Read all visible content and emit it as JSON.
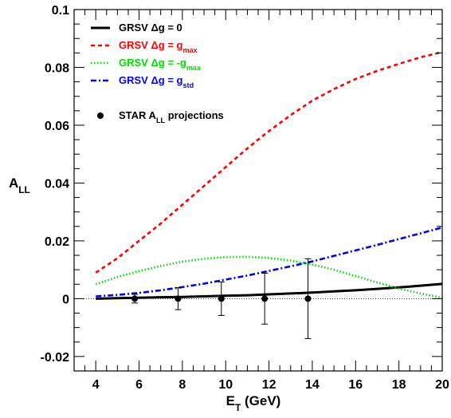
{
  "chart_data": {
    "type": "line",
    "xlabel": {
      "main": "E",
      "sub": "T",
      "rest": " (GeV)"
    },
    "ylabel": {
      "main": "A",
      "sub": "LL"
    },
    "xlim": [
      3,
      20
    ],
    "ylim": [
      -0.025,
      0.1
    ],
    "x_ticks": [
      4,
      6,
      8,
      10,
      12,
      14,
      16,
      18,
      20
    ],
    "x_tick_labels": [
      "4",
      "6",
      "8",
      "10",
      "12",
      "14",
      "16",
      "18",
      "20"
    ],
    "y_ticks": [
      -0.02,
      0,
      0.02,
      0.04,
      0.06,
      0.08,
      0.1
    ],
    "y_tick_labels": [
      "-0.02",
      "0",
      "0.02",
      "0.04",
      "0.06",
      "0.08",
      "0.1"
    ],
    "zero_line": true,
    "legend_position": "top-left",
    "series": [
      {
        "name_main": "GRSV Δg = 0",
        "name_sub": "",
        "color": "#000000",
        "style": "solid",
        "x": [
          4,
          5,
          6,
          7,
          8,
          9,
          10,
          11,
          12,
          13,
          14,
          15,
          16,
          17,
          18,
          19,
          20
        ],
        "y": [
          0.0,
          0.0002,
          0.0003,
          0.0005,
          0.0006,
          0.0008,
          0.001,
          0.0012,
          0.0015,
          0.0018,
          0.0021,
          0.0025,
          0.0029,
          0.0034,
          0.0039,
          0.0045,
          0.0051
        ]
      },
      {
        "name_main": "GRSV Δg = g",
        "name_sub": "max",
        "color": "#ff0000",
        "style": "dashed",
        "x": [
          4,
          5,
          6,
          7,
          8,
          9,
          10,
          11,
          12,
          13,
          14,
          15,
          16,
          17,
          18,
          19,
          20
        ],
        "y": [
          0.009,
          0.014,
          0.02,
          0.026,
          0.0325,
          0.039,
          0.0455,
          0.052,
          0.058,
          0.0635,
          0.0685,
          0.0725,
          0.076,
          0.0788,
          0.0812,
          0.0835,
          0.0853
        ]
      },
      {
        "name_main": "GRSV Δg = -g",
        "name_sub": "max",
        "color": "#00dd00",
        "style": "dotted",
        "x": [
          4,
          5,
          6,
          7,
          8,
          9,
          10,
          11,
          12,
          13,
          14,
          15,
          16,
          17,
          18,
          19,
          20
        ],
        "y": [
          0.005,
          0.0075,
          0.0095,
          0.0113,
          0.0128,
          0.0138,
          0.0144,
          0.0145,
          0.0141,
          0.0132,
          0.0118,
          0.01,
          0.0078,
          0.0056,
          0.0035,
          0.0018,
          0.0003
        ]
      },
      {
        "name_main": "GRSV Δg = g",
        "name_sub": "std",
        "color": "#0000ff",
        "style": "dashdot",
        "x": [
          4,
          5,
          6,
          7,
          8,
          9,
          10,
          11,
          12,
          13,
          14,
          15,
          16,
          17,
          18,
          19,
          20
        ],
        "y": [
          0.0008,
          0.0013,
          0.002,
          0.0029,
          0.004,
          0.0052,
          0.0066,
          0.008,
          0.0096,
          0.0112,
          0.0129,
          0.0148,
          0.0167,
          0.0186,
          0.0206,
          0.0226,
          0.0246
        ]
      }
    ],
    "points": {
      "name_main": "STAR A",
      "name_sub": "LL",
      "name_rest": " projections",
      "color": "#000000",
      "x": [
        5.8,
        7.8,
        9.8,
        11.8,
        13.8
      ],
      "y": [
        0.0,
        0.0,
        0.0,
        0.0,
        0.0
      ],
      "err": [
        0.0015,
        0.0038,
        0.0058,
        0.0088,
        0.0138
      ]
    }
  }
}
